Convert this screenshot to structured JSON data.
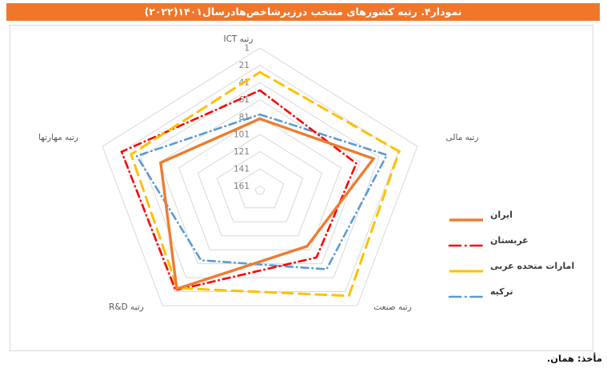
{
  "title": "نمودار۴. رتبه کشورهای منتخب درزیرشاخص‌هادرسال۱۴۰۱(۲۰۲۲)",
  "footer": "مأخذ: همان.",
  "colors": {
    "title_bar": "#F0762B",
    "title_text": "#FFFFFF",
    "grid": "#D9D9D9",
    "tick_text": "#7F7F7F",
    "axis_label_text": "#595959"
  },
  "chart_data": {
    "type": "radar",
    "title": "نمودار۴. رتبه کشورهای منتخب درزیرشاخص‌هادرسال۱۴۰۱(۲۰۲۲)",
    "axes": [
      "رتبه ICT",
      "رتبه مالی",
      "رتبه صنعت",
      "رتبه R&D",
      "رتبه مهارتها"
    ],
    "radial_ticks": [
      1,
      21,
      41,
      61,
      81,
      101,
      121,
      141,
      161
    ],
    "radial_axis_reversed": true,
    "grid": "pentagon-rings",
    "legend_position": "right",
    "series": [
      {
        "name": "ایران",
        "color": "#ED7D31",
        "style": "solid",
        "values": [
          83,
          47,
          86,
          25,
          62
        ]
      },
      {
        "name": "عربستان",
        "color": "#FF0000",
        "style": "dash-dot",
        "values": [
          50,
          65,
          70,
          23,
          21
        ]
      },
      {
        "name": "امارات متحده عربی",
        "color": "#FFC000",
        "style": "long-dash",
        "values": [
          29,
          20,
          15,
          26,
          31
        ]
      },
      {
        "name": "ترکیه",
        "color": "#5B9BD5",
        "style": "dash-dot",
        "values": [
          78,
          33,
          53,
          66,
          37
        ]
      }
    ]
  }
}
